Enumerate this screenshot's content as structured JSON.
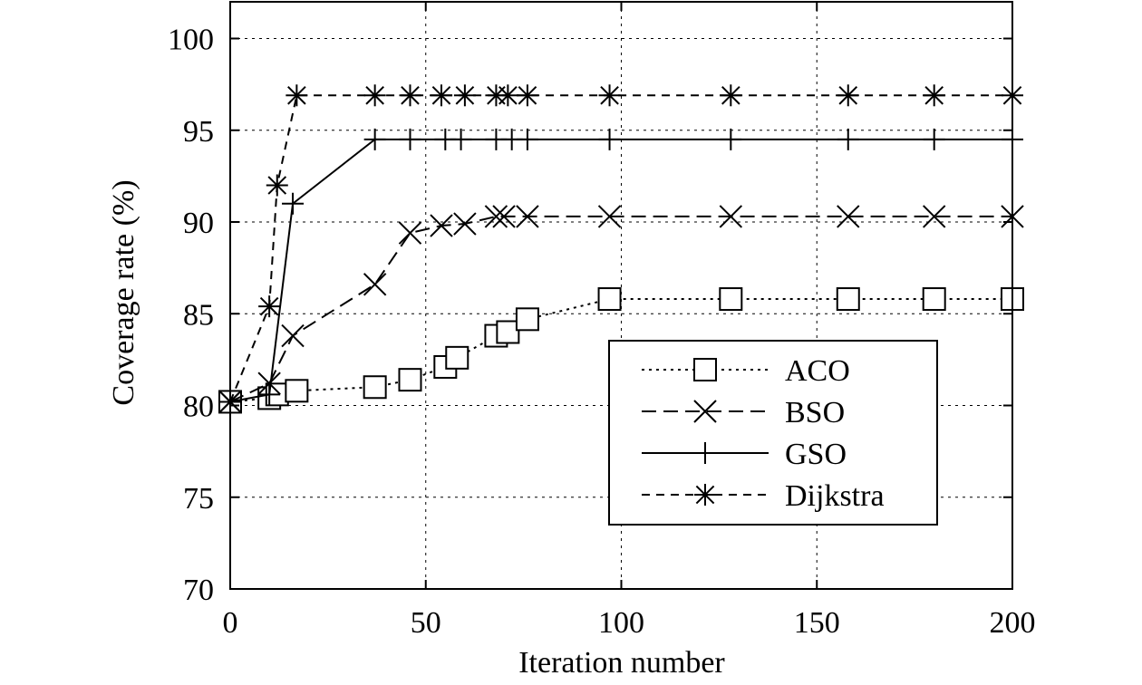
{
  "chart_data": {
    "type": "line",
    "title": "",
    "xlabel": "Iteration number",
    "ylabel": "Coverage rate (%)",
    "xlim": [
      0,
      200
    ],
    "ylim": [
      70,
      102
    ],
    "xticks": [
      0,
      50,
      100,
      150,
      200
    ],
    "yticks": [
      70,
      75,
      80,
      85,
      90,
      95,
      100
    ],
    "grid": true,
    "legend_position": "center-right",
    "series": [
      {
        "name": "ACO",
        "marker": "square",
        "dash": "dotted",
        "x": [
          0,
          10,
          12,
          17,
          37,
          46,
          55,
          58,
          68,
          71,
          76,
          97,
          128,
          158,
          180,
          200
        ],
        "y": [
          80.2,
          80.4,
          80.6,
          80.8,
          81.0,
          81.4,
          82.1,
          82.6,
          83.8,
          84.0,
          84.7,
          85.8,
          85.8,
          85.8,
          85.8,
          85.8
        ]
      },
      {
        "name": "BSO",
        "marker": "x",
        "dash": "long-dash",
        "x": [
          0,
          10,
          16,
          37,
          46,
          54,
          60,
          68,
          70,
          76,
          97,
          128,
          158,
          180,
          200
        ],
        "y": [
          80.2,
          81.2,
          83.8,
          86.6,
          89.4,
          89.8,
          89.9,
          90.3,
          90.3,
          90.3,
          90.3,
          90.3,
          90.3,
          90.3,
          90.3
        ]
      },
      {
        "name": "GSO",
        "marker": "plus",
        "dash": "solid",
        "x": [
          0,
          10,
          16,
          37,
          46,
          55,
          59,
          68,
          72,
          76,
          97,
          128,
          158,
          180,
          200
        ],
        "y": [
          80.2,
          80.6,
          91.0,
          94.5,
          94.5,
          94.5,
          94.5,
          94.5,
          94.5,
          94.5,
          94.5,
          94.5,
          94.5,
          94.5,
          94.5
        ]
      },
      {
        "name": "Dijkstra",
        "marker": "asterisk",
        "dash": "dashed",
        "x": [
          0,
          10,
          12,
          17,
          37,
          46,
          54,
          60,
          68,
          71,
          76,
          97,
          128,
          158,
          180,
          200
        ],
        "y": [
          80.2,
          85.4,
          92.0,
          96.9,
          96.9,
          96.9,
          96.9,
          96.9,
          96.9,
          96.9,
          96.9,
          96.9,
          96.9,
          96.9,
          96.9,
          96.9
        ]
      }
    ]
  }
}
